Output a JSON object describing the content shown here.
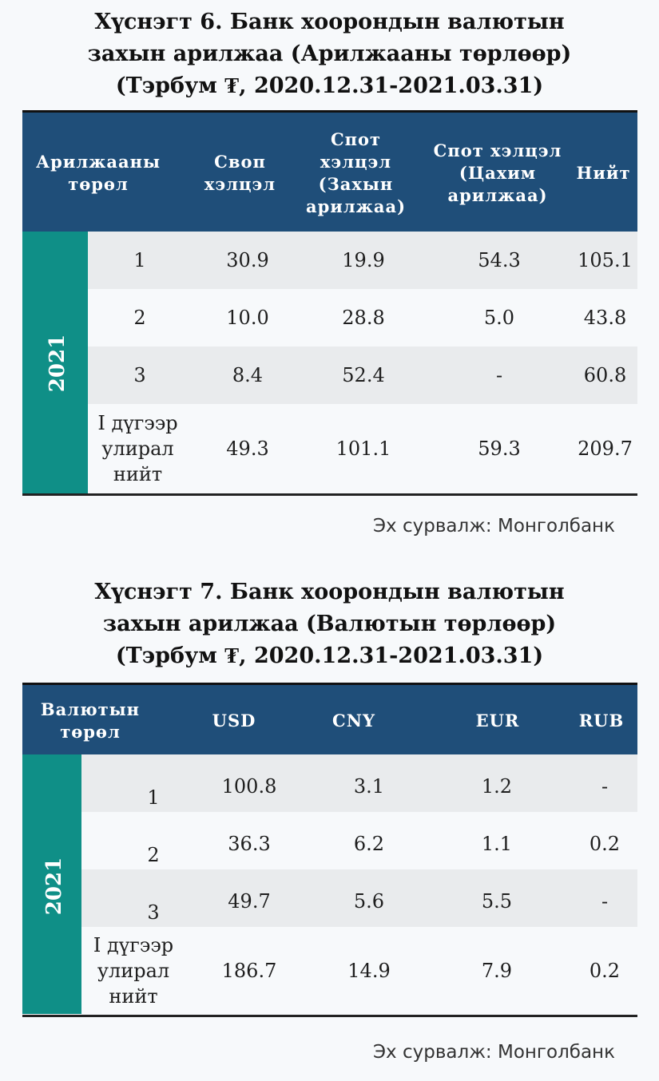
{
  "table6": {
    "title": [
      "Хүснэгт 6. Банк хоорондын валютын",
      "захын арилжаа (Арилжааны төрлөөр)",
      "(Тэрбум ₮, 2020.12.31-2021.03.31)"
    ],
    "headers": [
      [
        "Арилжааны",
        "төрөл"
      ],
      [
        "Своп",
        "хэлцэл"
      ],
      [
        "Спот",
        "хэлцэл",
        "(Захын",
        "арилжаа)"
      ],
      [
        "Спот хэлцэл",
        "(Цахим",
        "арилжаа)"
      ],
      [
        "Нийт"
      ]
    ],
    "year": "2021",
    "rows": [
      {
        "label": [
          "1"
        ],
        "values": [
          "30.9",
          "19.9",
          "54.3",
          "105.1"
        ]
      },
      {
        "label": [
          "2"
        ],
        "values": [
          "10.0",
          "28.8",
          "5.0",
          "43.8"
        ]
      },
      {
        "label": [
          "3"
        ],
        "values": [
          "8.4",
          "52.4",
          "-",
          "60.8"
        ]
      },
      {
        "label": [
          "I дүгээр",
          "улирал",
          "нийт"
        ],
        "values": [
          "49.3",
          "101.1",
          "59.3",
          "209.7"
        ]
      }
    ],
    "source": "Эх сурвалж: Монголбанк"
  },
  "table7": {
    "title": [
      "Хүснэгт 7. Банк хоорондын валютын",
      "захын арилжаа (Валютын төрлөөр)",
      "(Тэрбум ₮, 2020.12.31-2021.03.31)"
    ],
    "headers": [
      [
        "Валютын",
        "төрөл"
      ],
      [
        "USD"
      ],
      [
        "CNY"
      ],
      [
        "EUR"
      ],
      [
        "RUB"
      ]
    ],
    "year": "2021",
    "rows": [
      {
        "label": [
          "1"
        ],
        "values": [
          "100.8",
          "3.1",
          "1.2",
          "-"
        ]
      },
      {
        "label": [
          "2"
        ],
        "values": [
          "36.3",
          "6.2",
          "1.1",
          "0.2"
        ]
      },
      {
        "label": [
          "3"
        ],
        "values": [
          "49.7",
          "5.6",
          "5.5",
          "-"
        ]
      },
      {
        "label": [
          "I дүгээр",
          "улирал",
          "нийт"
        ],
        "values": [
          "186.7",
          "14.9",
          "7.9",
          "0.2"
        ]
      }
    ],
    "source": "Эх сурвалж: Монголбанк"
  }
}
